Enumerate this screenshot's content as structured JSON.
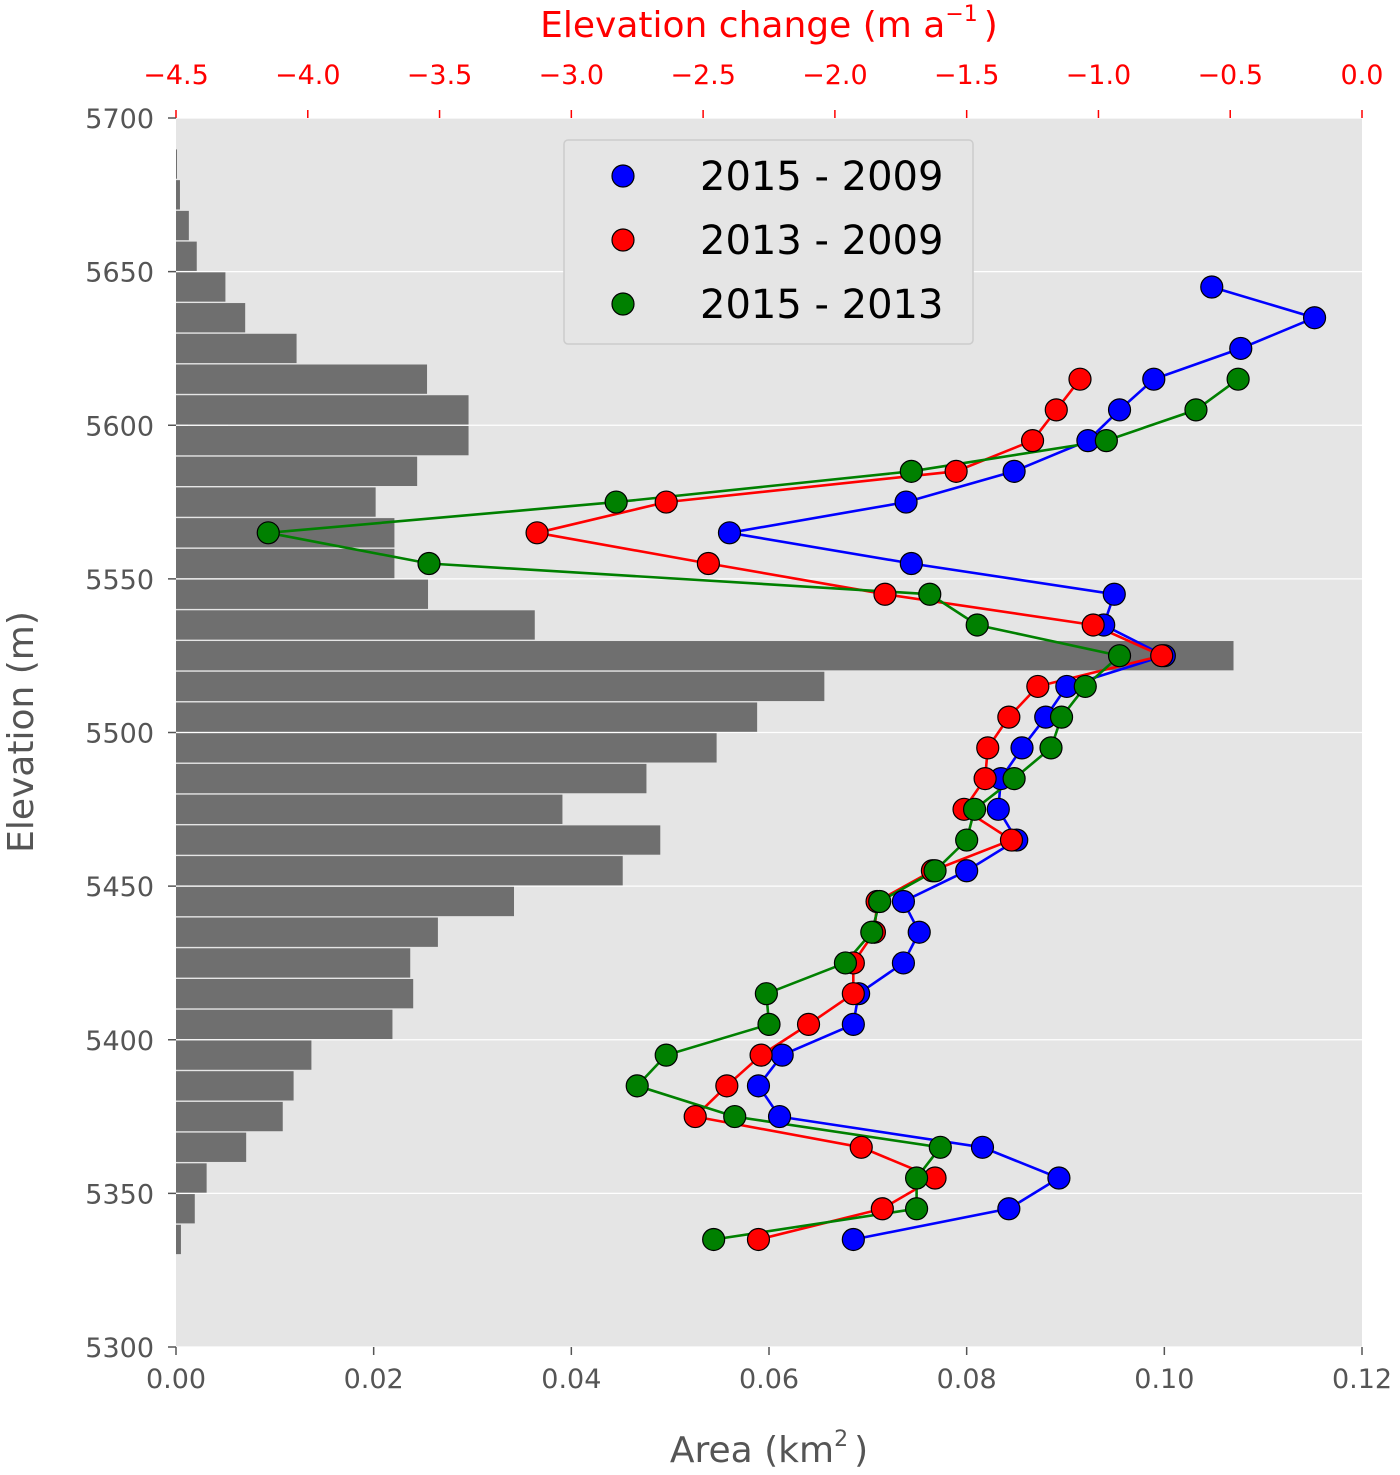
{
  "chart_data": {
    "type": "scatter",
    "title": "",
    "xlabel": "Area (km",
    "xlabel_sup": "2",
    "xlabel_end": ")",
    "x2label": "Elevation change (m a",
    "x2label_sup": "−1",
    "x2label_end": ")",
    "ylabel": "Elevation (m)",
    "xlim": [
      0,
      0.12
    ],
    "x2lim": [
      -4.5,
      0.0
    ],
    "ylim": [
      5300,
      5700
    ],
    "grid": true,
    "legend_position": "top-center",
    "x_ticks": [
      "0.00",
      "0.02",
      "0.04",
      "0.06",
      "0.08",
      "0.10",
      "0.12"
    ],
    "x2_ticks": [
      "−4.5",
      "−4.0",
      "−3.5",
      "−3.0",
      "−2.5",
      "−2.0",
      "−1.5",
      "−1.0",
      "−0.5",
      "0.0"
    ],
    "y_ticks": [
      "5300",
      "5350",
      "5400",
      "5450",
      "5500",
      "5550",
      "5600",
      "5650",
      "5700"
    ],
    "colors": {
      "bars": "#6f6f6f",
      "plot_background": "#e5e5e5",
      "top_axis": "#ff0000",
      "text": "#555555"
    },
    "histogram": {
      "bin_width": 10,
      "bins": [
        {
          "elevation": 5335,
          "area": 0.0005
        },
        {
          "elevation": 5345,
          "area": 0.0019
        },
        {
          "elevation": 5355,
          "area": 0.0031
        },
        {
          "elevation": 5365,
          "area": 0.0071
        },
        {
          "elevation": 5375,
          "area": 0.0108
        },
        {
          "elevation": 5385,
          "area": 0.0119
        },
        {
          "elevation": 5395,
          "area": 0.0137
        },
        {
          "elevation": 5405,
          "area": 0.0219
        },
        {
          "elevation": 5415,
          "area": 0.024
        },
        {
          "elevation": 5425,
          "area": 0.0237
        },
        {
          "elevation": 5435,
          "area": 0.0265
        },
        {
          "elevation": 5445,
          "area": 0.0342
        },
        {
          "elevation": 5455,
          "area": 0.0452
        },
        {
          "elevation": 5465,
          "area": 0.049
        },
        {
          "elevation": 5475,
          "area": 0.0391
        },
        {
          "elevation": 5485,
          "area": 0.0476
        },
        {
          "elevation": 5495,
          "area": 0.0547
        },
        {
          "elevation": 5505,
          "area": 0.0588
        },
        {
          "elevation": 5515,
          "area": 0.0656
        },
        {
          "elevation": 5525,
          "area": 0.107
        },
        {
          "elevation": 5535,
          "area": 0.0363
        },
        {
          "elevation": 5545,
          "area": 0.0255
        },
        {
          "elevation": 5555,
          "area": 0.0221
        },
        {
          "elevation": 5565,
          "area": 0.0221
        },
        {
          "elevation": 5575,
          "area": 0.0202
        },
        {
          "elevation": 5585,
          "area": 0.0244
        },
        {
          "elevation": 5595,
          "area": 0.0296
        },
        {
          "elevation": 5605,
          "area": 0.0296
        },
        {
          "elevation": 5615,
          "area": 0.0254
        },
        {
          "elevation": 5625,
          "area": 0.0122
        },
        {
          "elevation": 5635,
          "area": 0.007
        },
        {
          "elevation": 5645,
          "area": 0.005
        },
        {
          "elevation": 5655,
          "area": 0.0021
        },
        {
          "elevation": 5665,
          "area": 0.0013
        },
        {
          "elevation": 5675,
          "area": 0.0004
        },
        {
          "elevation": 5685,
          "area": 0.0001
        }
      ]
    },
    "series": [
      {
        "name": "2015 - 2009",
        "color": "#0000ff",
        "points": [
          {
            "elevation": 5645,
            "change": -0.57
          },
          {
            "elevation": 5635,
            "change": -0.18
          },
          {
            "elevation": 5625,
            "change": -0.46
          },
          {
            "elevation": 5615,
            "change": -0.79
          },
          {
            "elevation": 5605,
            "change": -0.92
          },
          {
            "elevation": 5595,
            "change": -1.04
          },
          {
            "elevation": 5585,
            "change": -1.32
          },
          {
            "elevation": 5575,
            "change": -1.73
          },
          {
            "elevation": 5565,
            "change": -2.4
          },
          {
            "elevation": 5555,
            "change": -1.71
          },
          {
            "elevation": 5545,
            "change": -0.94
          },
          {
            "elevation": 5535,
            "change": -0.98
          },
          {
            "elevation": 5525,
            "change": -0.75
          },
          {
            "elevation": 5515,
            "change": -1.12
          },
          {
            "elevation": 5505,
            "change": -1.2
          },
          {
            "elevation": 5495,
            "change": -1.29
          },
          {
            "elevation": 5485,
            "change": -1.37
          },
          {
            "elevation": 5475,
            "change": -1.38
          },
          {
            "elevation": 5465,
            "change": -1.31
          },
          {
            "elevation": 5455,
            "change": -1.5
          },
          {
            "elevation": 5445,
            "change": -1.74
          },
          {
            "elevation": 5435,
            "change": -1.68
          },
          {
            "elevation": 5425,
            "change": -1.74
          },
          {
            "elevation": 5415,
            "change": -1.91
          },
          {
            "elevation": 5405,
            "change": -1.93
          },
          {
            "elevation": 5395,
            "change": -2.2
          },
          {
            "elevation": 5385,
            "change": -2.29
          },
          {
            "elevation": 5375,
            "change": -2.21
          },
          {
            "elevation": 5365,
            "change": -1.44
          },
          {
            "elevation": 5355,
            "change": -1.15
          },
          {
            "elevation": 5345,
            "change": -1.34
          },
          {
            "elevation": 5335,
            "change": -1.93
          }
        ]
      },
      {
        "name": "2013 - 2009",
        "color": "#ff0000",
        "points": [
          {
            "elevation": 5615,
            "change": -1.07
          },
          {
            "elevation": 5605,
            "change": -1.16
          },
          {
            "elevation": 5595,
            "change": -1.25
          },
          {
            "elevation": 5585,
            "change": -1.54
          },
          {
            "elevation": 5575,
            "change": -2.64
          },
          {
            "elevation": 5565,
            "change": -3.13
          },
          {
            "elevation": 5555,
            "change": -2.48
          },
          {
            "elevation": 5545,
            "change": -1.81
          },
          {
            "elevation": 5535,
            "change": -1.02
          },
          {
            "elevation": 5525,
            "change": -0.76
          },
          {
            "elevation": 5515,
            "change": -1.23
          },
          {
            "elevation": 5505,
            "change": -1.34
          },
          {
            "elevation": 5495,
            "change": -1.42
          },
          {
            "elevation": 5485,
            "change": -1.43
          },
          {
            "elevation": 5475,
            "change": -1.51
          },
          {
            "elevation": 5465,
            "change": -1.33
          },
          {
            "elevation": 5455,
            "change": -1.63
          },
          {
            "elevation": 5445,
            "change": -1.84
          },
          {
            "elevation": 5435,
            "change": -1.85
          },
          {
            "elevation": 5425,
            "change": -1.93
          },
          {
            "elevation": 5415,
            "change": -1.93
          },
          {
            "elevation": 5405,
            "change": -2.1
          },
          {
            "elevation": 5395,
            "change": -2.28
          },
          {
            "elevation": 5385,
            "change": -2.41
          },
          {
            "elevation": 5375,
            "change": -2.53
          },
          {
            "elevation": 5365,
            "change": -1.9
          },
          {
            "elevation": 5355,
            "change": -1.62
          },
          {
            "elevation": 5345,
            "change": -1.82
          },
          {
            "elevation": 5335,
            "change": -2.29
          }
        ]
      },
      {
        "name": "2015 - 2013",
        "color": "#008000",
        "points": [
          {
            "elevation": 5615,
            "change": -0.47
          },
          {
            "elevation": 5605,
            "change": -0.63
          },
          {
            "elevation": 5595,
            "change": -0.97
          },
          {
            "elevation": 5585,
            "change": -1.71
          },
          {
            "elevation": 5575,
            "change": -2.83
          },
          {
            "elevation": 5565,
            "change": -4.15
          },
          {
            "elevation": 5555,
            "change": -3.54
          },
          {
            "elevation": 5545,
            "change": -1.64
          },
          {
            "elevation": 5535,
            "change": -1.46
          },
          {
            "elevation": 5525,
            "change": -0.92
          },
          {
            "elevation": 5515,
            "change": -1.05
          },
          {
            "elevation": 5505,
            "change": -1.14
          },
          {
            "elevation": 5495,
            "change": -1.18
          },
          {
            "elevation": 5485,
            "change": -1.32
          },
          {
            "elevation": 5475,
            "change": -1.47
          },
          {
            "elevation": 5465,
            "change": -1.5
          },
          {
            "elevation": 5455,
            "change": -1.62
          },
          {
            "elevation": 5445,
            "change": -1.83
          },
          {
            "elevation": 5435,
            "change": -1.86
          },
          {
            "elevation": 5425,
            "change": -1.96
          },
          {
            "elevation": 5415,
            "change": -2.26
          },
          {
            "elevation": 5405,
            "change": -2.25
          },
          {
            "elevation": 5395,
            "change": -2.64
          },
          {
            "elevation": 5385,
            "change": -2.75
          },
          {
            "elevation": 5375,
            "change": -2.38
          },
          {
            "elevation": 5365,
            "change": -1.6
          },
          {
            "elevation": 5355,
            "change": -1.69
          },
          {
            "elevation": 5345,
            "change": -1.69
          },
          {
            "elevation": 5335,
            "change": -2.46
          }
        ]
      }
    ]
  }
}
